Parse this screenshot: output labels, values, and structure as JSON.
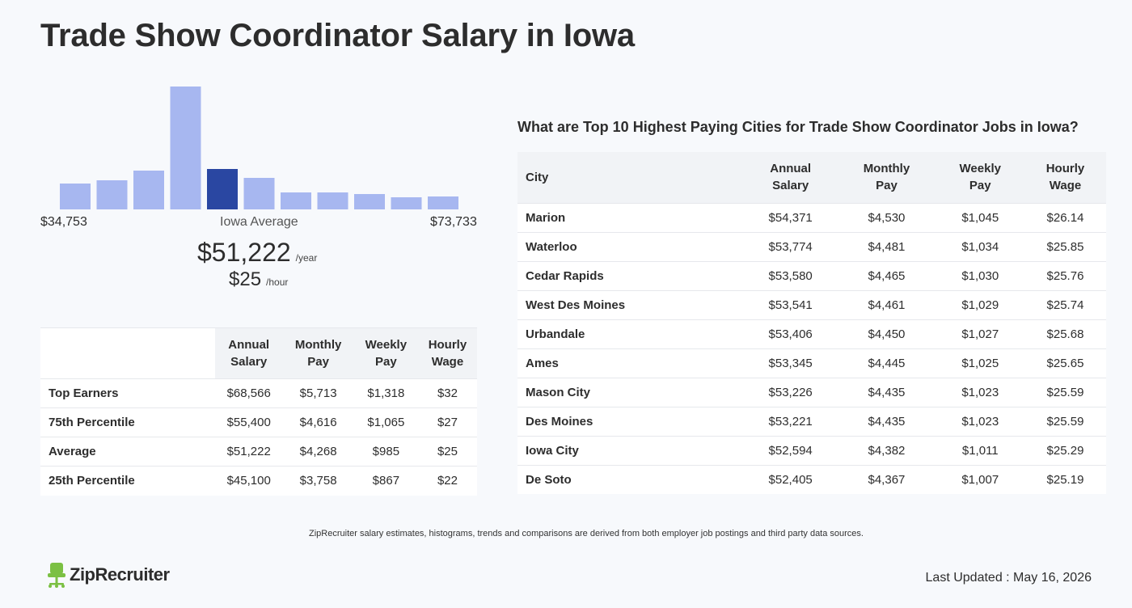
{
  "page": {
    "title": "Trade Show Coordinator Salary in Iowa"
  },
  "histogram": {
    "min_label": "$34,753",
    "mid_label": "Iowa Average",
    "max_label": "$73,733",
    "active_bar_index": 4,
    "bar_fill_colors": {
      "default": "#a7b7f0",
      "active": "#2a47a2"
    }
  },
  "chart_data": {
    "type": "bar",
    "title": "",
    "categories": [
      "1",
      "2",
      "3",
      "4",
      "5",
      "6",
      "7",
      "8",
      "9",
      "10",
      "11"
    ],
    "values": [
      32,
      36,
      48,
      152,
      50,
      39,
      21,
      21,
      19,
      15,
      16
    ],
    "xlabel": "",
    "ylabel": ""
  },
  "average": {
    "yearly": "$51,222",
    "yearly_unit": "/year",
    "hourly": "$25",
    "hourly_unit": "/hour"
  },
  "percentile_table": {
    "headers": [
      {
        "l1": "Annual",
        "l2": "Salary"
      },
      {
        "l1": "Monthly",
        "l2": "Pay"
      },
      {
        "l1": "Weekly",
        "l2": "Pay"
      },
      {
        "l1": "Hourly",
        "l2": "Wage"
      }
    ],
    "rows": [
      {
        "label": "Top Earners",
        "annual": "$68,566",
        "monthly": "$5,713",
        "weekly": "$1,318",
        "hourly": "$32"
      },
      {
        "label": "75th Percentile",
        "annual": "$55,400",
        "monthly": "$4,616",
        "weekly": "$1,065",
        "hourly": "$27"
      },
      {
        "label": "Average",
        "annual": "$51,222",
        "monthly": "$4,268",
        "weekly": "$985",
        "hourly": "$25"
      },
      {
        "label": "25th Percentile",
        "annual": "$45,100",
        "monthly": "$3,758",
        "weekly": "$867",
        "hourly": "$22"
      }
    ]
  },
  "cities": {
    "heading": "What are Top 10 Highest Paying Cities for Trade Show Coordinator Jobs in Iowa?",
    "headers": {
      "city": "City",
      "cols": [
        {
          "l1": "Annual",
          "l2": "Salary"
        },
        {
          "l1": "Monthly",
          "l2": "Pay"
        },
        {
          "l1": "Weekly",
          "l2": "Pay"
        },
        {
          "l1": "Hourly",
          "l2": "Wage"
        }
      ]
    },
    "rows": [
      {
        "city": "Marion",
        "annual": "$54,371",
        "monthly": "$4,530",
        "weekly": "$1,045",
        "hourly": "$26.14"
      },
      {
        "city": "Waterloo",
        "annual": "$53,774",
        "monthly": "$4,481",
        "weekly": "$1,034",
        "hourly": "$25.85"
      },
      {
        "city": "Cedar Rapids",
        "annual": "$53,580",
        "monthly": "$4,465",
        "weekly": "$1,030",
        "hourly": "$25.76"
      },
      {
        "city": "West Des Moines",
        "annual": "$53,541",
        "monthly": "$4,461",
        "weekly": "$1,029",
        "hourly": "$25.74"
      },
      {
        "city": "Urbandale",
        "annual": "$53,406",
        "monthly": "$4,450",
        "weekly": "$1,027",
        "hourly": "$25.68"
      },
      {
        "city": "Ames",
        "annual": "$53,345",
        "monthly": "$4,445",
        "weekly": "$1,025",
        "hourly": "$25.65"
      },
      {
        "city": "Mason City",
        "annual": "$53,226",
        "monthly": "$4,435",
        "weekly": "$1,023",
        "hourly": "$25.59"
      },
      {
        "city": "Des Moines",
        "annual": "$53,221",
        "monthly": "$4,435",
        "weekly": "$1,023",
        "hourly": "$25.59"
      },
      {
        "city": "Iowa City",
        "annual": "$52,594",
        "monthly": "$4,382",
        "weekly": "$1,011",
        "hourly": "$25.29"
      },
      {
        "city": "De Soto",
        "annual": "$52,405",
        "monthly": "$4,367",
        "weekly": "$1,007",
        "hourly": "$25.19"
      }
    ]
  },
  "footer": {
    "disclaimer": "ZipRecruiter salary estimates, histograms, trends and comparisons are derived from both employer job postings and third party data sources.",
    "logo_text": "ZipRecruiter",
    "logo_icon": "chair-icon",
    "logo_color": "#7bc043",
    "last_updated": "Last Updated : May 16, 2026"
  }
}
